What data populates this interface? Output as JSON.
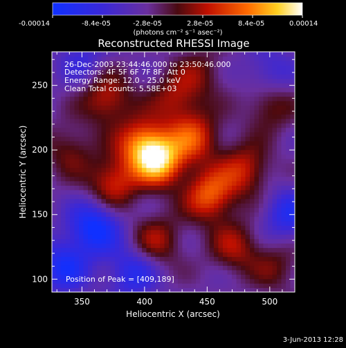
{
  "chart_data": {
    "type": "heatmap",
    "title": "Reconstructed RHESSI Image",
    "xlabel": "Heliocentric X (arcsec)",
    "ylabel": "Heliocentric Y (arcsec)",
    "xlim": [
      326,
      520
    ],
    "ylim": [
      90,
      276
    ],
    "x_ticks": [
      350,
      400,
      450,
      500
    ],
    "x_tick_labels": [
      "350",
      "400",
      "450",
      "500"
    ],
    "y_ticks": [
      100,
      150,
      200,
      250
    ],
    "y_tick_labels": [
      "100",
      "150",
      "200",
      "250"
    ],
    "colorbar": {
      "unit_label": "(photons cm⁻² s⁻¹ asec⁻²)",
      "tick_labels": [
        "-0.00014",
        "-8.4e-05",
        "-2.8e-05",
        "2.8e-05",
        "8.4e-05",
        "0.00014"
      ],
      "range": [
        -0.00014,
        0.00014
      ]
    },
    "annotations": {
      "time": "26-Dec-2003 23:44:46.000 to 23:50:46.000",
      "detectors": "Detectors: 4F 5F 6F 7F 8F, Att 0",
      "energy": "Energy Range: 12.0 - 25.0 keV",
      "clean": "Clean     Total counts: 5.58E+03",
      "peak": "Position of Peak = [409,189]"
    },
    "peak_position": [
      409,
      189
    ],
    "blobs": [
      {
        "x": 412,
        "y": 192,
        "amp": 1.0
      },
      {
        "x": 398,
        "y": 205,
        "amp": 0.75
      },
      {
        "x": 440,
        "y": 210,
        "amp": 0.62
      },
      {
        "x": 452,
        "y": 165,
        "amp": 0.75
      },
      {
        "x": 375,
        "y": 175,
        "amp": 0.6
      },
      {
        "x": 370,
        "y": 240,
        "amp": 0.55
      },
      {
        "x": 425,
        "y": 240,
        "amp": 0.45
      },
      {
        "x": 480,
        "y": 185,
        "amp": 0.55
      },
      {
        "x": 500,
        "y": 235,
        "amp": 0.4
      },
      {
        "x": 472,
        "y": 125,
        "amp": 0.45
      },
      {
        "x": 410,
        "y": 130,
        "amp": 0.45
      },
      {
        "x": 505,
        "y": 110,
        "amp": 0.3
      },
      {
        "x": 340,
        "y": 200,
        "amp": 0.35
      },
      {
        "x": 445,
        "y": 260,
        "amp": 0.3
      },
      {
        "x": 360,
        "y": 140,
        "amp": -0.75
      },
      {
        "x": 335,
        "y": 110,
        "amp": -0.6
      },
      {
        "x": 390,
        "y": 105,
        "amp": -0.5
      },
      {
        "x": 515,
        "y": 150,
        "amp": -0.5
      },
      {
        "x": 500,
        "y": 260,
        "amp": -0.35
      },
      {
        "x": 350,
        "y": 270,
        "amp": -0.3
      }
    ]
  },
  "footer": {
    "date": "3-Jun-2013 12:28"
  }
}
